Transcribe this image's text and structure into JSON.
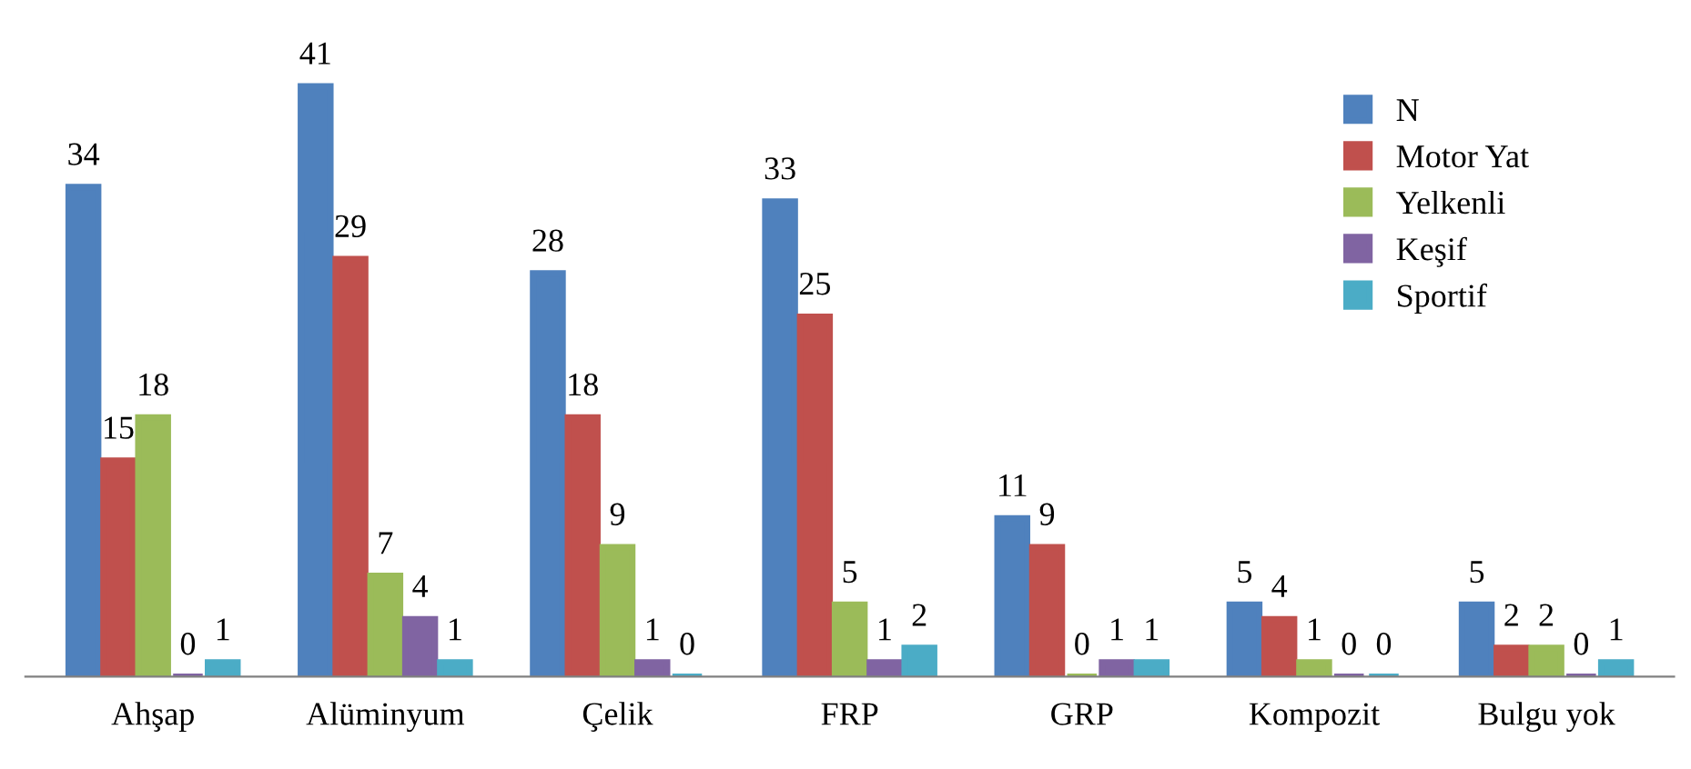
{
  "chart_data": {
    "type": "bar",
    "categories": [
      "Ahşap",
      "Alüminyum",
      "Çelik",
      "FRP",
      "GRP",
      "Kompozit",
      "Bulgu yok"
    ],
    "series": [
      {
        "name": "N",
        "color": "#4f81bd",
        "values": [
          34,
          41,
          28,
          33,
          11,
          5,
          5
        ]
      },
      {
        "name": "Motor Yat",
        "color": "#c0504d",
        "values": [
          15,
          29,
          18,
          25,
          9,
          4,
          2
        ]
      },
      {
        "name": "Yelkenli",
        "color": "#9bbb59",
        "values": [
          18,
          7,
          9,
          5,
          0,
          1,
          2
        ]
      },
      {
        "name": "Keşif",
        "color": "#8064a2",
        "values": [
          0,
          4,
          1,
          1,
          1,
          0,
          0
        ]
      },
      {
        "name": "Sportif",
        "color": "#4bacc6",
        "values": [
          1,
          1,
          0,
          2,
          1,
          0,
          1
        ]
      }
    ],
    "data_labels": true,
    "grid": false,
    "legend": "top right"
  }
}
